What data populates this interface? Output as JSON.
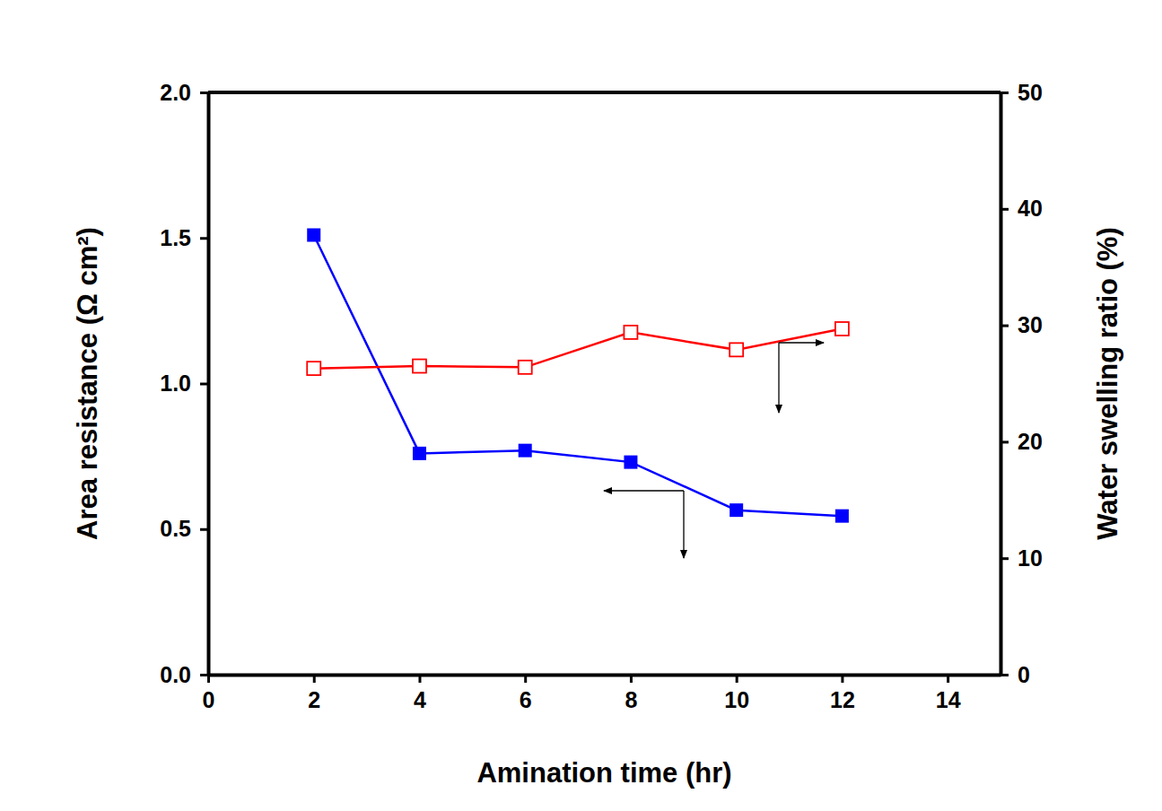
{
  "chart_data": {
    "type": "line",
    "x_label": "Amination time (hr)",
    "y_label": "Area resistance (Ω cm²)",
    "y2_label": "Water swelling ratio (%)",
    "x": [
      2,
      4,
      6,
      8,
      10,
      12
    ],
    "xlim": [
      0,
      15
    ],
    "xticks": [
      0,
      2,
      4,
      6,
      8,
      10,
      12,
      14
    ],
    "ylim": [
      0,
      2
    ],
    "yticks": [
      {
        "value": 0,
        "label": "0.0"
      },
      0.5,
      {
        "value": 1,
        "label": "1.0"
      },
      1.5,
      {
        "value": 2,
        "label": "2.0"
      }
    ],
    "y2lim": [
      0,
      50
    ],
    "y2ticks": [
      0,
      10,
      20,
      30,
      40,
      50
    ],
    "series": [
      {
        "color": "#0000ff",
        "marker": "square",
        "values": [
          1.51,
          0.76,
          0.77,
          0.73,
          0.565,
          0.545
        ]
      },
      {
        "color": "#ff0000",
        "marker": "open-square",
        "axis": "y2",
        "values": [
          26.3,
          26.5,
          26.4,
          29.4,
          27.9,
          29.7
        ]
      }
    ]
  }
}
